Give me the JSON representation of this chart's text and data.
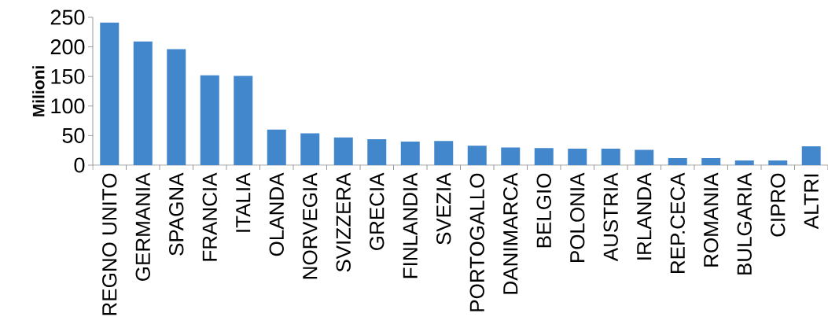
{
  "chart_data": {
    "type": "bar",
    "ylabel": "Milioni",
    "categories": [
      "REGNO UNITO",
      "GERMANIA",
      "SPAGNA",
      "FRANCIA",
      "ITALIA",
      "OLANDA",
      "NORVEGIA",
      "SVIZZERA",
      "GRECIA",
      "FINLANDIA",
      "SVEZIA",
      "PORTOGALLO",
      "DANIMARCA",
      "BELGIO",
      "POLONIA",
      "AUSTRIA",
      "IRLANDA",
      "REP.CECA",
      "ROMANIA",
      "BULGARIA",
      "CIPRO",
      "ALTRI"
    ],
    "values": [
      241,
      209,
      196,
      152,
      151,
      60,
      54,
      47,
      44,
      40,
      41,
      33,
      30,
      29,
      28,
      28,
      26,
      12,
      12,
      8,
      8,
      32
    ],
    "color": "#4286cc",
    "ylim": [
      0,
      250
    ],
    "yticks": [
      0,
      50,
      100,
      150,
      200,
      250
    ],
    "grid": false
  }
}
